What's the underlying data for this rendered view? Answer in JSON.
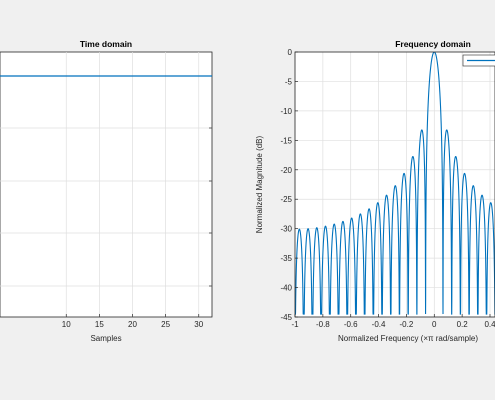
{
  "chart_data": [
    {
      "type": "line",
      "title": "Time domain",
      "xlabel": "Samples",
      "ylabel": "",
      "xlim": [
        0,
        32
      ],
      "x_ticks": [
        10,
        15,
        20,
        25,
        30
      ],
      "grid": true,
      "series": [
        {
          "x": [
            0,
            32
          ],
          "y": [
            1,
            1
          ],
          "color": "#0072bd"
        }
      ]
    },
    {
      "type": "line",
      "title": "Frequency domain",
      "xlabel": "Normalized Frequency  (×π rad/sample)",
      "ylabel": "Normalized Magnitude (dB)",
      "xlim": [
        -1,
        1
      ],
      "ylim": [
        -45,
        0
      ],
      "x_ticks": [
        "-1",
        "-0.8",
        "-0.6",
        "-0.4",
        "-0.2",
        "0",
        "0.2",
        "0.4"
      ],
      "y_ticks": [
        "0",
        "-5",
        "-10",
        "-15",
        "-20",
        "-25",
        "-30",
        "-35",
        "-40",
        "-45"
      ],
      "grid": true,
      "legend": "top-right",
      "window_length": 32,
      "color": "#0072bd"
    }
  ],
  "colors": {
    "figure_background": "#f0f0f0",
    "axes_background": "#ffffff",
    "line": "#0072bd"
  }
}
